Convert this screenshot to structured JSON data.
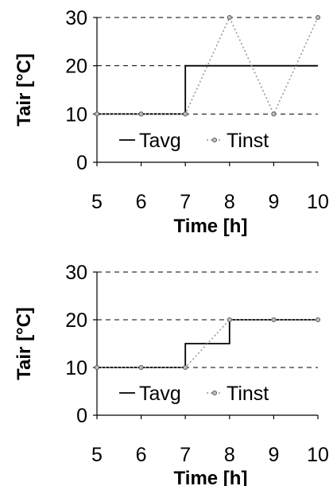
{
  "chart_data": [
    {
      "type": "line",
      "xlabel": "Time [h]",
      "ylabel": "Tair [°C]",
      "xlim": [
        5,
        10
      ],
      "ylim": [
        0,
        30
      ],
      "xticks": [
        "5",
        "6",
        "7",
        "8",
        "9",
        "10"
      ],
      "yticks": [
        "0",
        "10",
        "20",
        "30"
      ],
      "grid": "horizontal dashed",
      "legend_position": "bottom",
      "series": [
        {
          "name": "Tavg",
          "style": "solid step line",
          "color": "#000000",
          "x": [
            5,
            7,
            7,
            10
          ],
          "y": [
            10,
            10,
            20,
            20
          ]
        },
        {
          "name": "Tinst",
          "style": "dotted line with circle markers",
          "color": "#999999",
          "x": [
            5,
            6,
            7,
            8,
            9,
            10
          ],
          "y": [
            10,
            10,
            10,
            30,
            10,
            30
          ]
        }
      ]
    },
    {
      "type": "line",
      "xlabel": "Time [h]",
      "ylabel": "Tair [°C]",
      "xlim": [
        5,
        10
      ],
      "ylim": [
        0,
        30
      ],
      "xticks": [
        "5",
        "6",
        "7",
        "8",
        "9",
        "10"
      ],
      "yticks": [
        "0",
        "10",
        "20",
        "30"
      ],
      "grid": "horizontal dashed",
      "legend_position": "bottom",
      "series": [
        {
          "name": "Tavg",
          "style": "solid step line",
          "color": "#000000",
          "x": [
            5,
            7,
            7,
            8,
            8,
            10
          ],
          "y": [
            10,
            10,
            15,
            15,
            20,
            20
          ]
        },
        {
          "name": "Tinst",
          "style": "dotted line with circle markers",
          "color": "#999999",
          "x": [
            5,
            6,
            7,
            8,
            9,
            10
          ],
          "y": [
            10,
            10,
            10,
            20,
            20,
            20
          ]
        }
      ]
    }
  ]
}
